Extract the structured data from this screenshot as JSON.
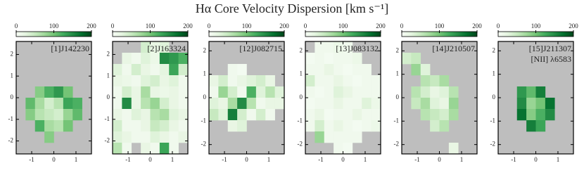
{
  "title": "Hα Core Velocity Dispersion [km s⁻¹]",
  "chart_data": [
    {
      "type": "heatmap",
      "title": "[1]J142230",
      "colormap": "Greens",
      "clim": [
        0,
        200
      ],
      "cticks": [
        0,
        100,
        200
      ],
      "xlim": [
        -1.7,
        1.7
      ],
      "ylim": [
        -2.6,
        2.6
      ],
      "xticks": [
        -1,
        0,
        1
      ],
      "yticks": [
        -2,
        -1,
        0,
        1,
        2
      ],
      "values": [
        [
          null,
          null,
          null,
          null,
          null,
          null,
          null,
          null
        ],
        [
          null,
          null,
          null,
          null,
          null,
          null,
          null,
          null
        ],
        [
          null,
          null,
          null,
          null,
          null,
          null,
          null,
          null
        ],
        [
          null,
          null,
          null,
          null,
          null,
          null,
          null,
          null
        ],
        [
          null,
          null,
          90,
          120,
          140,
          100,
          null,
          null
        ],
        [
          null,
          110,
          70,
          40,
          60,
          130,
          120,
          null
        ],
        [
          null,
          90,
          60,
          50,
          40,
          80,
          110,
          null
        ],
        [
          null,
          null,
          120,
          70,
          60,
          100,
          null,
          null
        ],
        [
          null,
          null,
          null,
          90,
          null,
          null,
          null,
          null
        ],
        [
          null,
          null,
          null,
          null,
          null,
          null,
          null,
          null
        ]
      ]
    },
    {
      "type": "heatmap",
      "title": "[2]J163324",
      "colormap": "Greens",
      "clim": [
        0,
        200
      ],
      "cticks": [
        0,
        100,
        200
      ],
      "xlim": [
        -1.7,
        1.7
      ],
      "ylim": [
        -2.6,
        2.6
      ],
      "xticks": [
        -1,
        0,
        1
      ],
      "yticks": [
        -2,
        -1,
        0,
        1,
        2
      ],
      "values": [
        [
          null,
          null,
          null,
          40,
          20,
          30,
          null,
          null
        ],
        [
          null,
          20,
          10,
          30,
          15,
          150,
          140,
          120
        ],
        [
          30,
          10,
          40,
          20,
          10,
          25,
          130,
          40
        ],
        [
          20,
          15,
          10,
          30,
          40,
          20,
          30,
          10
        ],
        [
          10,
          40,
          20,
          70,
          20,
          15,
          20,
          10
        ],
        [
          10,
          150,
          20,
          60,
          80,
          40,
          20,
          10
        ],
        [
          20,
          10,
          30,
          20,
          60,
          70,
          30,
          20
        ],
        [
          40,
          10,
          10,
          20,
          50,
          40,
          20,
          10
        ],
        [
          30,
          20,
          10,
          10,
          30,
          20,
          10,
          20
        ],
        [
          60,
          10,
          null,
          20,
          10,
          130,
          10,
          null
        ]
      ]
    },
    {
      "type": "heatmap",
      "title": "[12]J082715",
      "colormap": "Greens",
      "clim": [
        0,
        200
      ],
      "cticks": [
        0,
        100,
        200
      ],
      "xlim": [
        -1.7,
        1.7
      ],
      "ylim": [
        -2.4,
        2.4
      ],
      "xticks": [
        -1,
        0,
        1
      ],
      "yticks": [
        -2,
        -1,
        0,
        1,
        2
      ],
      "values": [
        [
          null,
          null,
          null,
          null,
          null,
          null,
          null,
          null
        ],
        [
          null,
          null,
          null,
          null,
          null,
          null,
          null,
          null
        ],
        [
          null,
          null,
          10,
          5,
          null,
          null,
          null,
          null
        ],
        [
          20,
          40,
          10,
          20,
          30,
          40,
          20,
          null
        ],
        [
          10,
          80,
          40,
          10,
          120,
          30,
          60,
          30
        ],
        [
          30,
          20,
          70,
          150,
          60,
          10,
          20,
          20
        ],
        [
          50,
          30,
          160,
          40,
          10,
          40,
          10,
          null
        ],
        [
          null,
          null,
          20,
          30,
          null,
          null,
          null,
          null
        ],
        [
          null,
          null,
          null,
          null,
          null,
          null,
          null,
          null
        ],
        [
          null,
          null,
          null,
          null,
          null,
          null,
          null,
          null
        ]
      ]
    },
    {
      "type": "heatmap",
      "title": "[13]J083132",
      "colormap": "Greens",
      "clim": [
        0,
        200
      ],
      "cticks": [
        0,
        100,
        200
      ],
      "xlim": [
        -1.7,
        1.7
      ],
      "ylim": [
        -2.4,
        2.4
      ],
      "xticks": [
        -1,
        0,
        1
      ],
      "yticks": [
        -2,
        -1,
        0,
        1,
        2
      ],
      "values": [
        [
          null,
          10,
          10,
          15,
          10,
          null,
          null,
          null
        ],
        [
          5,
          10,
          5,
          10,
          10,
          15,
          null,
          null
        ],
        [
          10,
          10,
          20,
          10,
          5,
          10,
          10,
          null
        ],
        [
          40,
          10,
          10,
          20,
          10,
          5,
          10,
          10
        ],
        [
          10,
          5,
          10,
          30,
          20,
          10,
          10,
          10
        ],
        [
          5,
          10,
          10,
          20,
          10,
          10,
          30,
          15
        ],
        [
          10,
          20,
          5,
          10,
          10,
          20,
          10,
          10
        ],
        [
          10,
          40,
          10,
          20,
          10,
          5,
          10,
          15
        ],
        [
          null,
          80,
          10,
          10,
          10,
          10,
          null,
          null
        ],
        [
          null,
          null,
          null,
          10,
          5,
          null,
          null,
          null
        ]
      ]
    },
    {
      "type": "heatmap",
      "title": "[14]J210507",
      "colormap": "Greens",
      "clim": [
        0,
        200
      ],
      "cticks": [
        0,
        100,
        200
      ],
      "xlim": [
        -1.7,
        1.7
      ],
      "ylim": [
        -2.4,
        2.4
      ],
      "xticks": [
        -1,
        0,
        1
      ],
      "yticks": [
        -2,
        -1,
        0,
        1,
        2
      ],
      "values": [
        [
          null,
          null,
          null,
          null,
          null,
          null,
          null,
          null
        ],
        [
          40,
          50,
          null,
          null,
          null,
          null,
          null,
          null
        ],
        [
          null,
          80,
          30,
          null,
          null,
          null,
          null,
          null
        ],
        [
          null,
          null,
          60,
          50,
          70,
          null,
          null,
          null
        ],
        [
          null,
          60,
          40,
          20,
          30,
          60,
          null,
          null
        ],
        [
          null,
          50,
          70,
          30,
          20,
          80,
          null,
          null
        ],
        [
          null,
          null,
          60,
          50,
          40,
          70,
          null,
          null
        ],
        [
          null,
          null,
          null,
          40,
          60,
          null,
          null,
          null
        ],
        [
          null,
          null,
          null,
          null,
          null,
          null,
          null,
          null
        ],
        [
          null,
          null,
          null,
          null,
          null,
          20,
          null,
          null
        ]
      ]
    },
    {
      "type": "heatmap",
      "title": "[15]J211307",
      "subtitle": "[NII] λ6583",
      "colormap": "Greens",
      "clim": [
        0,
        200
      ],
      "cticks": [
        0,
        100,
        200
      ],
      "xlim": [
        -1.7,
        1.7
      ],
      "ylim": [
        -2.4,
        2.4
      ],
      "xticks": [
        -1,
        0,
        1
      ],
      "yticks": [
        -2,
        -1,
        0,
        1,
        2
      ],
      "values": [
        [
          null,
          null,
          null,
          null,
          null,
          null,
          null,
          null
        ],
        [
          null,
          null,
          null,
          null,
          null,
          null,
          null,
          null
        ],
        [
          null,
          null,
          null,
          null,
          null,
          null,
          null,
          null
        ],
        [
          null,
          null,
          null,
          null,
          null,
          null,
          null,
          null
        ],
        [
          null,
          null,
          140,
          110,
          160,
          null,
          null,
          null
        ],
        [
          null,
          null,
          150,
          80,
          100,
          170,
          null,
          null
        ],
        [
          null,
          null,
          170,
          90,
          120,
          150,
          null,
          null
        ],
        [
          null,
          null,
          null,
          160,
          130,
          null,
          null,
          null
        ],
        [
          null,
          null,
          null,
          null,
          null,
          null,
          null,
          null
        ],
        [
          null,
          null,
          null,
          null,
          null,
          null,
          null,
          null
        ]
      ]
    }
  ]
}
